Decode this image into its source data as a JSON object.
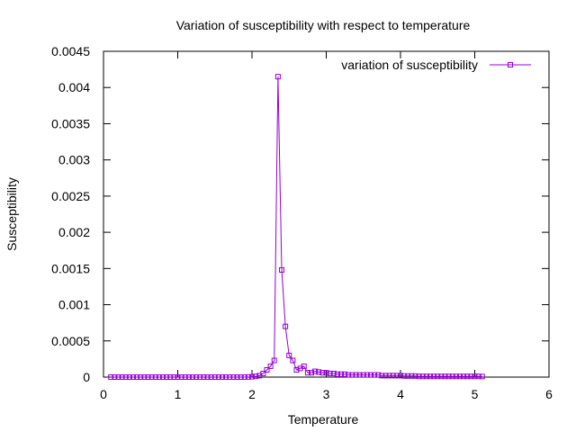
{
  "chart_data": {
    "type": "line",
    "title": "Variation of susceptibility with respect to temperature",
    "xlabel": "Temperature",
    "ylabel": "Susceptibility",
    "xlim": [
      0,
      6
    ],
    "ylim": [
      0,
      0.0045
    ],
    "xticks": [
      "0",
      "1",
      "2",
      "3",
      "4",
      "5",
      "6"
    ],
    "yticks": [
      "0",
      "0.0005",
      "0.001",
      "0.0015",
      "0.002",
      "0.0025",
      "0.003",
      "0.0035",
      "0.004",
      "0.0045"
    ],
    "grid": false,
    "legend_position": "top-right",
    "series": [
      {
        "name": "variation of susceptibility",
        "color": "#9400d3",
        "marker": "open-square",
        "x": [
          0.1,
          0.15,
          0.2,
          0.25,
          0.3,
          0.35,
          0.4,
          0.45,
          0.5,
          0.55,
          0.6,
          0.65,
          0.7,
          0.75,
          0.8,
          0.85,
          0.9,
          0.95,
          1.0,
          1.05,
          1.1,
          1.15,
          1.2,
          1.25,
          1.3,
          1.35,
          1.4,
          1.45,
          1.5,
          1.55,
          1.6,
          1.65,
          1.7,
          1.75,
          1.8,
          1.85,
          1.9,
          1.95,
          2.0,
          2.05,
          2.1,
          2.15,
          2.2,
          2.25,
          2.3,
          2.35,
          2.4,
          2.45,
          2.5,
          2.55,
          2.6,
          2.65,
          2.7,
          2.75,
          2.8,
          2.85,
          2.9,
          2.95,
          3.0,
          3.05,
          3.1,
          3.15,
          3.2,
          3.25,
          3.3,
          3.35,
          3.4,
          3.45,
          3.5,
          3.55,
          3.6,
          3.65,
          3.7,
          3.75,
          3.8,
          3.85,
          3.9,
          3.95,
          4.0,
          4.05,
          4.1,
          4.15,
          4.2,
          4.25,
          4.3,
          4.35,
          4.4,
          4.45,
          4.5,
          4.55,
          4.6,
          4.65,
          4.7,
          4.75,
          4.8,
          4.85,
          4.9,
          4.95,
          5.0,
          5.05,
          5.1
        ],
        "y": [
          0,
          0,
          0,
          0,
          0,
          0,
          0,
          0,
          0,
          0,
          0,
          0,
          0,
          0,
          0,
          0,
          0,
          0,
          0,
          0,
          0,
          0,
          0,
          0,
          0,
          0,
          0,
          0,
          0,
          0,
          0,
          0,
          0,
          0,
          0,
          0,
          0,
          2e-06,
          5e-06,
          1e-05,
          2e-05,
          5e-05,
          0.0001,
          0.00015,
          0.00023,
          0.00415,
          0.00148,
          0.0007,
          0.0003,
          0.00023,
          0.0001,
          0.00012,
          0.00015,
          6e-05,
          6e-05,
          8e-05,
          7e-05,
          6e-05,
          6e-05,
          5e-05,
          5e-05,
          4e-05,
          4e-05,
          4e-05,
          3e-05,
          3e-05,
          3e-05,
          3e-05,
          3e-05,
          3e-05,
          3e-05,
          3e-05,
          3e-05,
          2e-05,
          2e-05,
          2e-05,
          2e-05,
          2e-05,
          2e-05,
          1.5e-05,
          1.5e-05,
          1.5e-05,
          1.5e-05,
          1e-05,
          1e-05,
          1e-05,
          1e-05,
          1e-05,
          1e-05,
          1e-05,
          1e-05,
          1e-05,
          1e-05,
          1e-05,
          1e-05,
          1e-05,
          1e-05,
          1e-05,
          1e-05,
          1e-05,
          8e-06
        ]
      }
    ]
  }
}
